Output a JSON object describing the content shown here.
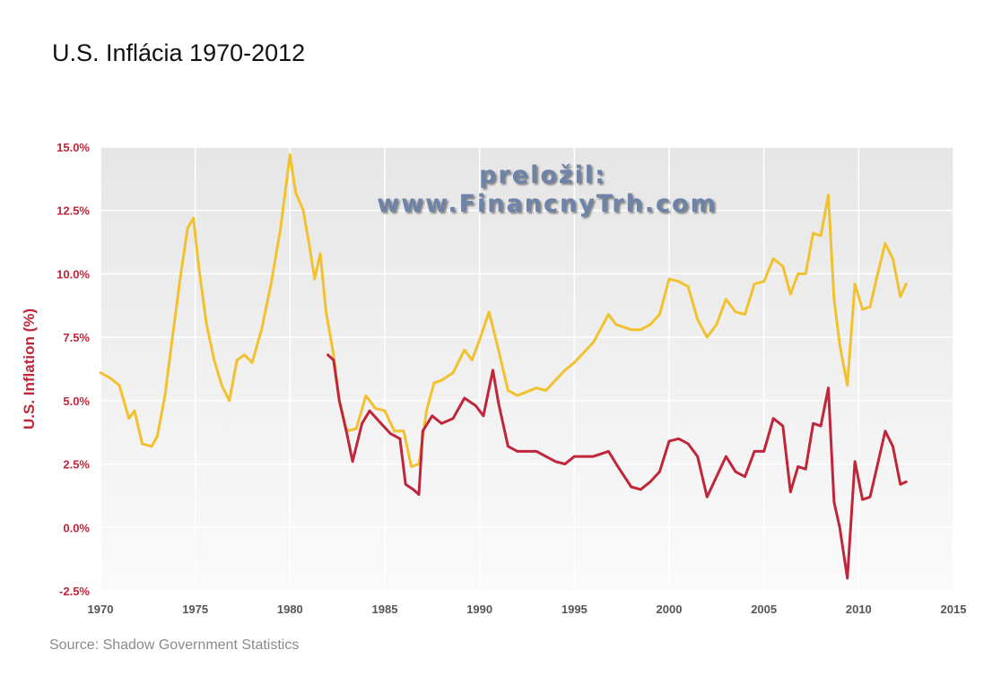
{
  "slide": {
    "title": "U.S. Inflácia 1970-2012",
    "source": "Source: Shadow Government Statistics",
    "watermark_line1": "preložil:",
    "watermark_line2": "www.FinancnyTrh.com"
  },
  "chart_data": {
    "type": "line",
    "title": "U.S. Inflácia 1970-2012",
    "xlabel": "",
    "ylabel": "U.S. Inflation (%)",
    "xlim": [
      1970,
      2015
    ],
    "ylim": [
      -2.5,
      15.0
    ],
    "grid": true,
    "x_ticks": [
      "1970",
      "1975",
      "1980",
      "1985",
      "1990",
      "1995",
      "2000",
      "2005",
      "2010",
      "2015"
    ],
    "y_ticks": [
      "-2.5%",
      "0.0%",
      "2.5%",
      "5.0%",
      "7.5%",
      "10.0%",
      "12.5%",
      "15.0%"
    ],
    "series": [
      {
        "color": "#f2c12e",
        "points": [
          [
            1970.0,
            6.1
          ],
          [
            1970.5,
            5.9
          ],
          [
            1971.0,
            5.6
          ],
          [
            1971.5,
            4.3
          ],
          [
            1971.8,
            4.6
          ],
          [
            1972.2,
            3.3
          ],
          [
            1972.7,
            3.2
          ],
          [
            1973.0,
            3.6
          ],
          [
            1973.4,
            5.2
          ],
          [
            1973.8,
            7.5
          ],
          [
            1974.2,
            9.8
          ],
          [
            1974.6,
            11.8
          ],
          [
            1974.9,
            12.2
          ],
          [
            1975.2,
            10.2
          ],
          [
            1975.6,
            8.0
          ],
          [
            1976.0,
            6.6
          ],
          [
            1976.4,
            5.6
          ],
          [
            1976.8,
            5.0
          ],
          [
            1977.2,
            6.6
          ],
          [
            1977.6,
            6.8
          ],
          [
            1978.0,
            6.5
          ],
          [
            1978.5,
            7.8
          ],
          [
            1979.0,
            9.6
          ],
          [
            1979.5,
            11.8
          ],
          [
            1980.0,
            14.7
          ],
          [
            1980.3,
            13.2
          ],
          [
            1980.7,
            12.5
          ],
          [
            1981.0,
            11.2
          ],
          [
            1981.3,
            9.8
          ],
          [
            1981.6,
            10.8
          ],
          [
            1981.9,
            8.5
          ],
          [
            1982.3,
            6.8
          ],
          [
            1982.6,
            5.0
          ],
          [
            1983.0,
            3.8
          ],
          [
            1983.5,
            3.9
          ],
          [
            1984.0,
            5.2
          ],
          [
            1984.5,
            4.7
          ],
          [
            1985.0,
            4.6
          ],
          [
            1985.5,
            3.8
          ],
          [
            1986.0,
            3.8
          ],
          [
            1986.4,
            2.4
          ],
          [
            1986.8,
            2.5
          ],
          [
            1987.2,
            4.6
          ],
          [
            1987.6,
            5.7
          ],
          [
            1988.0,
            5.8
          ],
          [
            1988.6,
            6.1
          ],
          [
            1989.2,
            7.0
          ],
          [
            1989.6,
            6.6
          ],
          [
            1990.0,
            7.4
          ],
          [
            1990.5,
            8.5
          ],
          [
            1991.0,
            7.0
          ],
          [
            1991.5,
            5.4
          ],
          [
            1992.0,
            5.2
          ],
          [
            1993.0,
            5.5
          ],
          [
            1993.5,
            5.4
          ],
          [
            1994.0,
            5.8
          ],
          [
            1994.5,
            6.2
          ],
          [
            1995.0,
            6.5
          ],
          [
            1996.0,
            7.3
          ],
          [
            1996.8,
            8.4
          ],
          [
            1997.2,
            8.0
          ],
          [
            1998.0,
            7.8
          ],
          [
            1998.5,
            7.8
          ],
          [
            1999.0,
            8.0
          ],
          [
            1999.5,
            8.4
          ],
          [
            2000.0,
            9.8
          ],
          [
            2000.5,
            9.7
          ],
          [
            2001.0,
            9.5
          ],
          [
            2001.5,
            8.2
          ],
          [
            2002.0,
            7.5
          ],
          [
            2002.5,
            8.0
          ],
          [
            2003.0,
            9.0
          ],
          [
            2003.5,
            8.5
          ],
          [
            2004.0,
            8.4
          ],
          [
            2004.5,
            9.6
          ],
          [
            2005.0,
            9.7
          ],
          [
            2005.5,
            10.6
          ],
          [
            2006.0,
            10.3
          ],
          [
            2006.4,
            9.2
          ],
          [
            2006.8,
            10.0
          ],
          [
            2007.2,
            10.0
          ],
          [
            2007.6,
            11.6
          ],
          [
            2008.0,
            11.5
          ],
          [
            2008.4,
            13.1
          ],
          [
            2008.7,
            9.0
          ],
          [
            2009.0,
            7.2
          ],
          [
            2009.4,
            5.6
          ],
          [
            2009.8,
            9.6
          ],
          [
            2010.2,
            8.6
          ],
          [
            2010.6,
            8.7
          ],
          [
            2011.0,
            10.0
          ],
          [
            2011.4,
            11.2
          ],
          [
            2011.8,
            10.6
          ],
          [
            2012.2,
            9.1
          ],
          [
            2012.5,
            9.6
          ]
        ]
      },
      {
        "color": "#c0263a",
        "points": [
          [
            1982.0,
            6.8
          ],
          [
            1982.3,
            6.6
          ],
          [
            1982.6,
            5.0
          ],
          [
            1983.0,
            3.7
          ],
          [
            1983.3,
            2.6
          ],
          [
            1983.8,
            4.1
          ],
          [
            1984.2,
            4.6
          ],
          [
            1984.8,
            4.1
          ],
          [
            1985.3,
            3.7
          ],
          [
            1985.8,
            3.5
          ],
          [
            1986.1,
            1.7
          ],
          [
            1986.5,
            1.5
          ],
          [
            1986.8,
            1.3
          ],
          [
            1987.0,
            3.8
          ],
          [
            1987.5,
            4.4
          ],
          [
            1988.0,
            4.1
          ],
          [
            1988.6,
            4.3
          ],
          [
            1989.2,
            5.1
          ],
          [
            1989.8,
            4.8
          ],
          [
            1990.2,
            4.4
          ],
          [
            1990.7,
            6.2
          ],
          [
            1991.0,
            4.9
          ],
          [
            1991.5,
            3.2
          ],
          [
            1992.0,
            3.0
          ],
          [
            1993.0,
            3.0
          ],
          [
            1993.5,
            2.8
          ],
          [
            1994.0,
            2.6
          ],
          [
            1994.5,
            2.5
          ],
          [
            1995.0,
            2.8
          ],
          [
            1996.0,
            2.8
          ],
          [
            1996.8,
            3.0
          ],
          [
            1997.3,
            2.4
          ],
          [
            1998.0,
            1.6
          ],
          [
            1998.5,
            1.5
          ],
          [
            1999.0,
            1.8
          ],
          [
            1999.5,
            2.2
          ],
          [
            2000.0,
            3.4
          ],
          [
            2000.5,
            3.5
          ],
          [
            2001.0,
            3.3
          ],
          [
            2001.5,
            2.8
          ],
          [
            2002.0,
            1.2
          ],
          [
            2002.5,
            2.0
          ],
          [
            2003.0,
            2.8
          ],
          [
            2003.5,
            2.2
          ],
          [
            2004.0,
            2.0
          ],
          [
            2004.5,
            3.0
          ],
          [
            2005.0,
            3.0
          ],
          [
            2005.5,
            4.3
          ],
          [
            2006.0,
            4.0
          ],
          [
            2006.4,
            1.4
          ],
          [
            2006.8,
            2.4
          ],
          [
            2007.2,
            2.3
          ],
          [
            2007.6,
            4.1
          ],
          [
            2008.0,
            4.0
          ],
          [
            2008.4,
            5.5
          ],
          [
            2008.7,
            1.0
          ],
          [
            2009.0,
            0.0
          ],
          [
            2009.4,
            -2.0
          ],
          [
            2009.8,
            2.6
          ],
          [
            2010.2,
            1.1
          ],
          [
            2010.6,
            1.2
          ],
          [
            2011.0,
            2.5
          ],
          [
            2011.4,
            3.8
          ],
          [
            2011.8,
            3.2
          ],
          [
            2012.2,
            1.7
          ],
          [
            2012.5,
            1.8
          ]
        ]
      }
    ]
  }
}
